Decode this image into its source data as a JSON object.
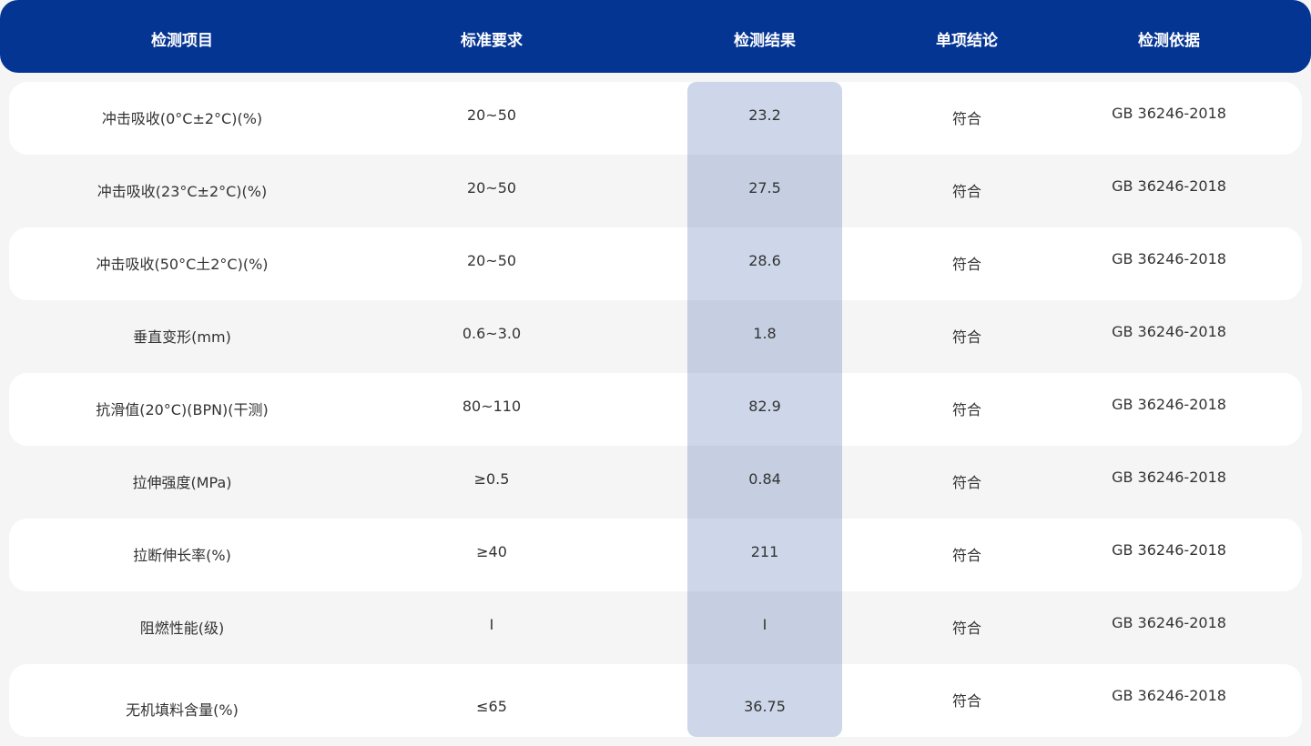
{
  "colors": {
    "header": "#053592",
    "highlight": "#cdd7e9",
    "background": "#f5f5f5"
  },
  "headers": [
    "检测项目",
    "标准要求",
    "检测结果",
    "单项结论",
    "检测依据"
  ],
  "rows": [
    {
      "item": "冲击吸收(0°C±2°C)(%)",
      "requirement": "20~50",
      "result": "23.2",
      "conclusion": "符合",
      "basis": "GB 36246-2018"
    },
    {
      "item": "冲击吸收(23°C±2°C)(%)",
      "requirement": "20~50",
      "result": "27.5",
      "conclusion": "符合",
      "basis": "GB 36246-2018"
    },
    {
      "item": "冲击吸收(50°C土2°C)(%)",
      "requirement": "20~50",
      "result": "28.6",
      "conclusion": "符合",
      "basis": "GB 36246-2018"
    },
    {
      "item": "垂直变形(mm)",
      "requirement": "0.6~3.0",
      "result": "1.8",
      "conclusion": "符合",
      "basis": "GB 36246-2018"
    },
    {
      "item": "抗滑值(20°C)(BPN)(干测)",
      "requirement": "80~110",
      "result": "82.9",
      "conclusion": "符合",
      "basis": "GB 36246-2018"
    },
    {
      "item": "拉伸强度(MPa)",
      "requirement": "≥0.5",
      "result": "0.84",
      "conclusion": "符合",
      "basis": "GB 36246-2018"
    },
    {
      "item": "拉断伸长率(%)",
      "requirement": "≥40",
      "result": "211",
      "conclusion": "符合",
      "basis": "GB 36246-2018"
    },
    {
      "item": "阻燃性能(级)",
      "requirement": "I",
      "result": "I",
      "conclusion": "符合",
      "basis": "GB 36246-2018"
    },
    {
      "item": "无机填料含量(%)",
      "requirement": "≤65",
      "result": "36.75",
      "conclusion": "符合",
      "basis": "GB 36246-2018"
    }
  ]
}
